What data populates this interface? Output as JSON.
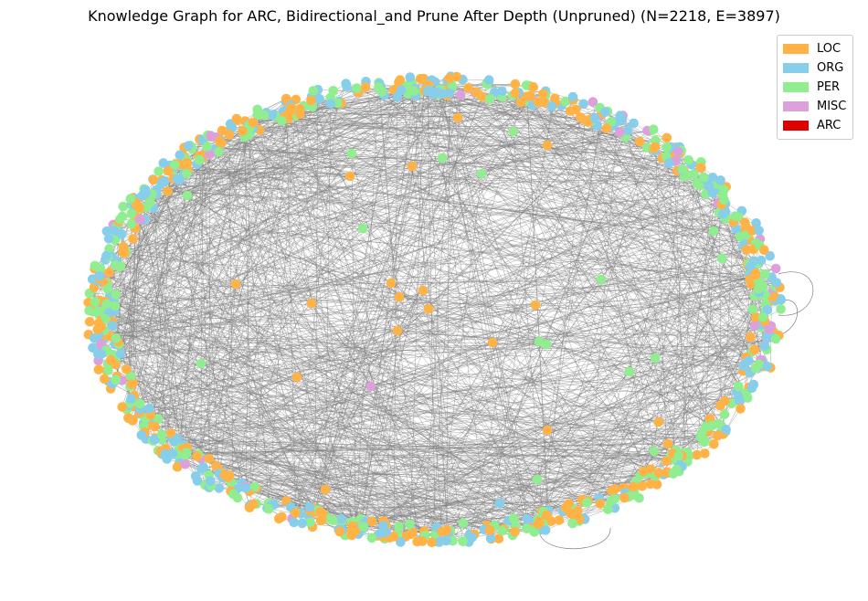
{
  "title": "Knowledge Graph for ARC, Bidirectional_and Prune After Depth (Unpruned) (N=2218, E=3897)",
  "legend": [
    {
      "label": "LOC",
      "color": "#ffb347"
    },
    {
      "label": "ORG",
      "color": "#87ceeb"
    },
    {
      "label": "PER",
      "color": "#90ee90"
    },
    {
      "label": "MISC",
      "color": "#dda0dd"
    },
    {
      "label": "ARC",
      "color": "#dd0000"
    }
  ],
  "graph": {
    "node_count": 2218,
    "edge_count": 3897,
    "edge_color": "#808080"
  }
}
